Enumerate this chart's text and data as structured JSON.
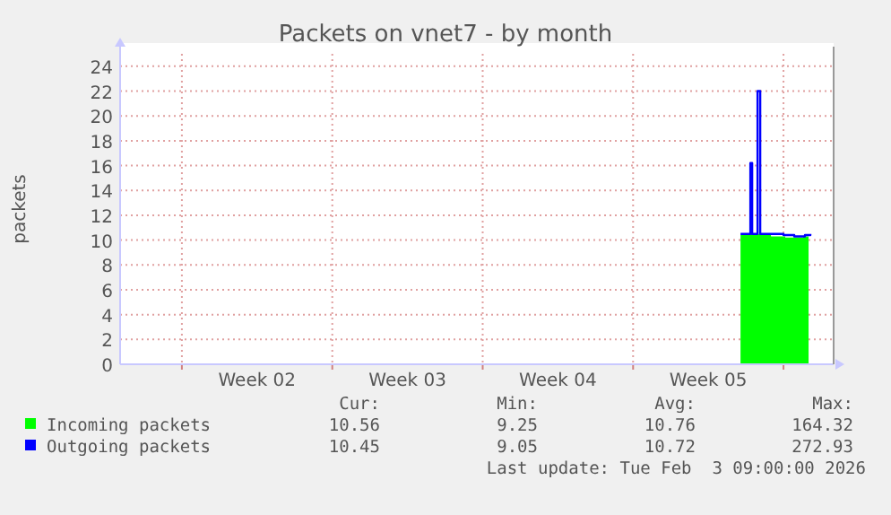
{
  "chart_data": {
    "type": "area",
    "title": "Packets on vnet7 - by month",
    "ylabel": "packets",
    "xlim": [
      "2026-01-02T03:00",
      "2026-02-04T08:00"
    ],
    "xticks": [
      {
        "value": "2026-01-05",
        "label": null
      },
      {
        "value": "2026-01-08T12:00",
        "label": "Week 02"
      },
      {
        "value": "2026-01-12",
        "label": null
      },
      {
        "value": "2026-01-15T12:00",
        "label": "Week 03"
      },
      {
        "value": "2026-01-19",
        "label": null
      },
      {
        "value": "2026-01-22T12:00",
        "label": "Week 04"
      },
      {
        "value": "2026-01-26",
        "label": null
      },
      {
        "value": "2026-01-29T12:00",
        "label": "Week 05"
      },
      {
        "value": "2026-02-02",
        "label": null
      }
    ],
    "ylim": [
      0,
      25
    ],
    "yticks": [
      0,
      2,
      4,
      6,
      8,
      10,
      12,
      14,
      16,
      18,
      20,
      22,
      24
    ],
    "grid": true,
    "legend": "bottom",
    "series": [
      {
        "name": "Incoming packets",
        "color": "#00ff00",
        "x": [
          "2026-01-31T00:00",
          "2026-01-31T06:00",
          "2026-01-31T10:00",
          "2026-01-31T12:00",
          "2026-01-31T16:00",
          "2026-01-31T18:00",
          "2026-01-31T20:00",
          "2026-02-01T04:00",
          "2026-02-01T10:00",
          "2026-02-02T02:00",
          "2026-02-02T22:00",
          "2026-02-03T04:00"
        ],
        "values": [
          10.4,
          10.4,
          13,
          10.5,
          10.5,
          14,
          10.5,
          10.5,
          10.3,
          10.2,
          10.3,
          10.5
        ]
      },
      {
        "name": "Outgoing packets",
        "type": "line",
        "color": "#0000ff",
        "x": [
          "2026-01-31T00:00",
          "2026-01-31T08:00",
          "2026-01-31T11:00",
          "2026-01-31T13:00",
          "2026-01-31T17:00",
          "2026-01-31T19:00",
          "2026-01-31T22:00",
          "2026-02-02T00:00",
          "2026-02-02T12:00",
          "2026-02-03T00:00",
          "2026-02-03T06:00"
        ],
        "values": [
          10.5,
          10.5,
          16.2,
          10.5,
          10.5,
          22,
          10.5,
          10.4,
          10.3,
          10.4,
          10.5
        ]
      }
    ],
    "annotations": [
      "Cur:",
      "Min:",
      "Avg:",
      "Max:",
      "10.56",
      "9.25",
      "10.76",
      "164.32",
      "10.45",
      "9.05",
      "10.72",
      "272.93",
      "Last update: Tue Feb  3 09:00:00 2026"
    ]
  }
}
